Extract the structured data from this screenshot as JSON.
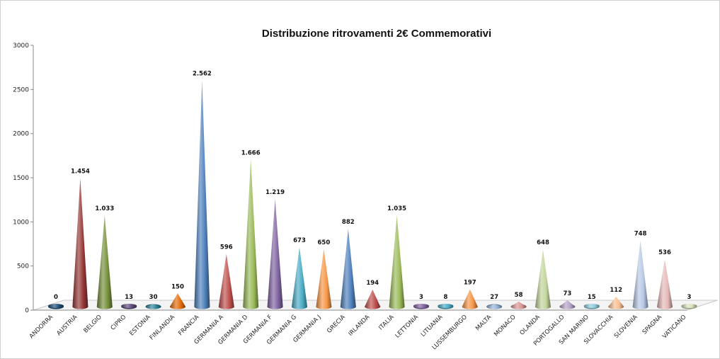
{
  "chart_data": {
    "type": "bar",
    "style": "3d-cone",
    "title": "Distribuzione ritrovamenti 2€ Commemorativi",
    "xlabel": "",
    "ylabel": "",
    "ylim": [
      0,
      3000
    ],
    "yticks": [
      0,
      500,
      1000,
      1500,
      2000,
      2500,
      3000
    ],
    "ytick_labels": [
      "0",
      "500",
      "1000",
      "1500",
      "2000",
      "2500",
      "3000"
    ],
    "grid": false,
    "legend": "none",
    "categories": [
      "ANDORRA",
      "AUSTRIA",
      "BELGIO",
      "CIPRO",
      "ESTONIA",
      "FINLANDIA",
      "FRANCIA",
      "GERMANIA A",
      "GERMANIA D",
      "GERMANIA F",
      "GERMANIA G",
      "GERMANIA J",
      "GRECIA",
      "IRLANDA",
      "ITALIA",
      "LETTONIA",
      "LITUANIA",
      "LUSSEMBURGO",
      "MALTA",
      "MONACO",
      "OLANDA",
      "PORTOGALLO",
      "SAN MARINO",
      "SLOVACCHIA",
      "SLOVENIA",
      "SPAGNA",
      "VATICANO"
    ],
    "values": [
      0,
      1454,
      1033,
      13,
      30,
      150,
      2562,
      596,
      1666,
      1219,
      673,
      650,
      882,
      194,
      1035,
      3,
      8,
      197,
      27,
      58,
      648,
      73,
      15,
      112,
      748,
      536,
      3
    ],
    "data_labels": [
      "0",
      "1.454",
      "1.033",
      "13",
      "30",
      "150",
      "2.562",
      "596",
      "1.666",
      "1.219",
      "673",
      "650",
      "882",
      "194",
      "1.035",
      "3",
      "8",
      "197",
      "27",
      "58",
      "648",
      "73",
      "15",
      "112",
      "748",
      "536",
      "3"
    ],
    "colors": [
      "#1f4e79",
      "#953735",
      "#76923c",
      "#5f497a",
      "#31849b",
      "#e46c0a",
      "#4f81bd",
      "#c0504d",
      "#9bbb59",
      "#8064a2",
      "#4bacc6",
      "#f79646",
      "#4f81bd",
      "#c0504d",
      "#9bbb59",
      "#8064a2",
      "#4bacc6",
      "#f79646",
      "#95b3d7",
      "#da9694",
      "#c3d69b",
      "#b3a2c7",
      "#93cddd",
      "#fabf8f",
      "#b9c9e6",
      "#e6b9b8",
      "#d7e4bd"
    ]
  }
}
